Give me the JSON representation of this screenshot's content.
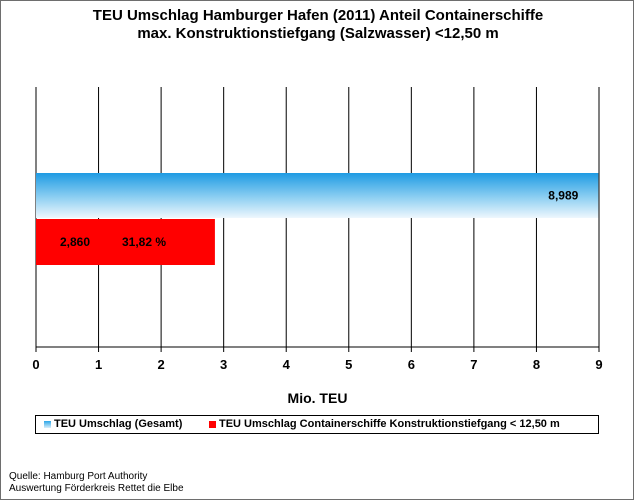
{
  "chart_data": {
    "type": "bar",
    "orientation": "horizontal",
    "title": "TEU Umschlag Hamburger Hafen (2011) Anteil Containerschiffe",
    "subtitle": "max. Konstruktionstiefgang (Salzwasser) <12,50 m",
    "xlabel": "Mio. TEU",
    "xlim": [
      0,
      9
    ],
    "x_ticks": [
      "0",
      "1",
      "2",
      "3",
      "4",
      "5",
      "6",
      "7",
      "8",
      "9"
    ],
    "grid": "vertical",
    "legend_position": "bottom",
    "series": [
      {
        "name": "TEU Umschlag (Gesamt)",
        "values": [
          8.989
        ],
        "value_label": "8,989",
        "color": "#35aee8"
      },
      {
        "name": "TEU Umschlag Containerschiffe Konstruktionstiefgang < 12,50 m",
        "values": [
          2.86
        ],
        "value_label": "2,860",
        "share_label": "31,82 %",
        "color": "#ff0000"
      }
    ]
  },
  "source": {
    "line1": "Quelle: Hamburg Port Authority",
    "line2": "Auswertung Förderkreis Rettet die Elbe"
  }
}
